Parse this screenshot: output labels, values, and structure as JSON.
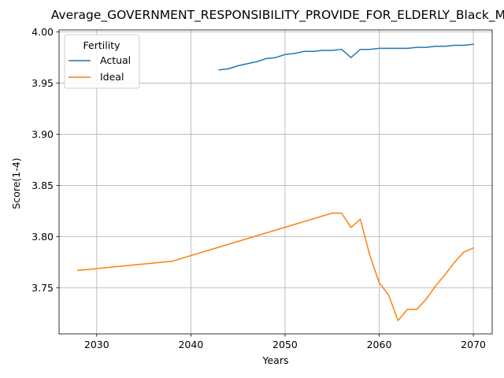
{
  "chart_data": {
    "type": "line",
    "title": "Average_GOVERNMENT_RESPONSIBILITY_PROVIDE_FOR_ELDERLY_Black_Male",
    "xlabel": "Years",
    "ylabel": "Score(1-4)",
    "xlim": [
      2026,
      2072
    ],
    "ylim": [
      3.705,
      4.002
    ],
    "xticks": [
      2030,
      2040,
      2050,
      2060,
      2070
    ],
    "yticks": [
      3.75,
      3.8,
      3.85,
      3.9,
      3.95,
      4.0
    ],
    "ytick_labels": [
      "3.75",
      "3.80",
      "3.85",
      "3.90",
      "3.95",
      "4.00"
    ],
    "grid": true,
    "legend": {
      "title": "Fertility",
      "placement": "top-left"
    },
    "series": [
      {
        "name": "Actual",
        "color": "#1f77b4",
        "x": [
          2043,
          2044,
          2045,
          2046,
          2047,
          2048,
          2049,
          2050,
          2051,
          2052,
          2053,
          2054,
          2055,
          2056,
          2057,
          2058,
          2059,
          2060,
          2061,
          2062,
          2063,
          2064,
          2065,
          2066,
          2067,
          2068,
          2069,
          2070
        ],
        "y": [
          3.963,
          3.964,
          3.967,
          3.969,
          3.971,
          3.974,
          3.975,
          3.978,
          3.979,
          3.981,
          3.981,
          3.982,
          3.982,
          3.983,
          3.975,
          3.983,
          3.983,
          3.984,
          3.984,
          3.984,
          3.984,
          3.985,
          3.985,
          3.986,
          3.986,
          3.987,
          3.987,
          3.988
        ]
      },
      {
        "name": "Ideal",
        "color": "#ff7f0e",
        "x": [
          2028,
          2038,
          2055,
          2056,
          2057,
          2058,
          2059,
          2060,
          2061,
          2062,
          2063,
          2064,
          2065,
          2066,
          2067,
          2068,
          2069,
          2070
        ],
        "y": [
          3.767,
          3.776,
          3.823,
          3.823,
          3.809,
          3.817,
          3.782,
          3.755,
          3.743,
          3.718,
          3.729,
          3.729,
          3.739,
          3.752,
          3.763,
          3.775,
          3.785,
          3.789
        ]
      }
    ]
  }
}
